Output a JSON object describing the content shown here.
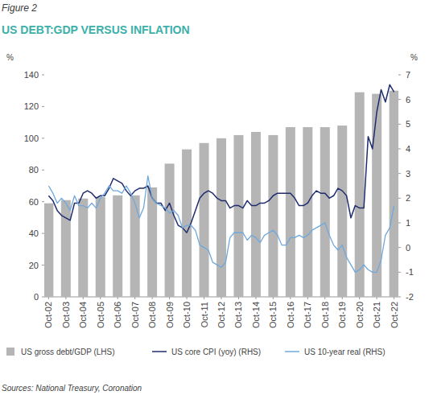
{
  "chart_data": {
    "type": "bar_line",
    "figure_label": "Figure 2",
    "title": "US DEBT:GDP VERSUS INFLATION",
    "y_label": "%",
    "y2_label": "%",
    "source": "Sources: National Treasury, Coronation",
    "xlim": [
      2002.5,
      2023.0
    ],
    "xticks": [
      {
        "value": 2002.75,
        "label": "Oct-02"
      },
      {
        "value": 2003.75,
        "label": "Oct-03"
      },
      {
        "value": 2004.75,
        "label": "Oct-04"
      },
      {
        "value": 2005.75,
        "label": "Oct-05"
      },
      {
        "value": 2006.75,
        "label": "Oct-06"
      },
      {
        "value": 2007.75,
        "label": "Oct-07"
      },
      {
        "value": 2008.75,
        "label": "Oct-08"
      },
      {
        "value": 2009.75,
        "label": "Oct-09"
      },
      {
        "value": 2010.75,
        "label": "Oct-10"
      },
      {
        "value": 2011.75,
        "label": "Oct-11"
      },
      {
        "value": 2012.75,
        "label": "Oct-12"
      },
      {
        "value": 2013.75,
        "label": "Oct-13"
      },
      {
        "value": 2014.75,
        "label": "Oct-14"
      },
      {
        "value": 2015.75,
        "label": "Oct-15"
      },
      {
        "value": 2016.75,
        "label": "Oct-16"
      },
      {
        "value": 2017.75,
        "label": "Oct-17"
      },
      {
        "value": 2018.75,
        "label": "Oct-18"
      },
      {
        "value": 2019.75,
        "label": "Oct-19"
      },
      {
        "value": 2020.75,
        "label": "Oct-20"
      },
      {
        "value": 2021.75,
        "label": "Oct-21"
      },
      {
        "value": 2022.75,
        "label": "Oct-22"
      }
    ],
    "ylim": [
      0,
      140
    ],
    "yticks": [
      0,
      20,
      40,
      60,
      80,
      100,
      120,
      140
    ],
    "y2lim": [
      -2,
      7
    ],
    "y2ticks": [
      -2,
      -1,
      0,
      1,
      2,
      3,
      4,
      5,
      6,
      7
    ],
    "grid": false,
    "legend": "bottom",
    "series": [
      {
        "name": "US gross debt/GDP (LHS)",
        "type": "bar",
        "color": "#b5b5b5",
        "x": [
          2002.75,
          2003.75,
          2004.75,
          2005.75,
          2006.75,
          2007.75,
          2008.75,
          2009.75,
          2010.75,
          2011.75,
          2012.75,
          2013.75,
          2014.75,
          2015.75,
          2016.75,
          2017.75,
          2018.75,
          2019.75,
          2020.75,
          2021.75,
          2022.75
        ],
        "values": [
          59,
          61,
          62,
          63,
          64,
          64,
          69,
          84,
          93,
          97,
          100,
          102,
          104,
          102,
          107,
          107,
          107,
          108,
          129,
          128,
          130
        ]
      },
      {
        "name": "US core CPI (yoy) (RHS)",
        "type": "line",
        "axis": "y2",
        "color": "#1f2d6e",
        "x": [
          2002.75,
          2003.0,
          2003.25,
          2003.5,
          2003.75,
          2004.0,
          2004.25,
          2004.5,
          2004.75,
          2005.0,
          2005.25,
          2005.5,
          2005.75,
          2006.0,
          2006.25,
          2006.5,
          2006.75,
          2007.0,
          2007.25,
          2007.5,
          2007.75,
          2008.0,
          2008.25,
          2008.5,
          2008.75,
          2009.0,
          2009.25,
          2009.5,
          2009.75,
          2010.0,
          2010.25,
          2010.5,
          2010.75,
          2011.0,
          2011.25,
          2011.5,
          2011.75,
          2012.0,
          2012.25,
          2012.5,
          2012.75,
          2013.0,
          2013.25,
          2013.5,
          2013.75,
          2014.0,
          2014.25,
          2014.5,
          2014.75,
          2015.0,
          2015.25,
          2015.5,
          2015.75,
          2016.0,
          2016.25,
          2016.5,
          2016.75,
          2017.0,
          2017.25,
          2017.5,
          2017.75,
          2018.0,
          2018.25,
          2018.5,
          2018.75,
          2019.0,
          2019.25,
          2019.5,
          2019.75,
          2020.0,
          2020.25,
          2020.5,
          2020.75,
          2021.0,
          2021.25,
          2021.5,
          2021.75,
          2022.0,
          2022.25,
          2022.5,
          2022.75
        ],
        "values": [
          2.1,
          1.9,
          1.5,
          1.3,
          1.2,
          1.1,
          1.8,
          1.8,
          2.2,
          2.3,
          2.2,
          2.0,
          2.1,
          2.1,
          2.4,
          2.8,
          2.7,
          2.6,
          2.3,
          2.1,
          2.3,
          2.4,
          2.4,
          2.5,
          2.0,
          1.8,
          1.8,
          1.5,
          1.8,
          1.3,
          0.9,
          0.8,
          0.6,
          1.0,
          1.5,
          2.0,
          2.2,
          2.3,
          2.2,
          2.0,
          1.9,
          1.9,
          1.6,
          1.7,
          1.7,
          1.6,
          1.9,
          1.7,
          1.7,
          1.8,
          1.8,
          1.9,
          2.1,
          2.2,
          2.2,
          2.2,
          2.2,
          2.0,
          1.7,
          1.7,
          1.8,
          2.1,
          2.3,
          2.2,
          2.2,
          2.0,
          2.1,
          2.4,
          2.3,
          2.1,
          1.2,
          1.7,
          1.6,
          1.6,
          4.5,
          4.0,
          5.5,
          6.4,
          5.9,
          6.6,
          6.3
        ]
      },
      {
        "name": "US 10-year real (RHS)",
        "type": "line",
        "axis": "y2",
        "color": "#6fa8dc",
        "x": [
          2002.75,
          2003.0,
          2003.25,
          2003.5,
          2003.75,
          2004.0,
          2004.25,
          2004.5,
          2004.75,
          2005.0,
          2005.25,
          2005.5,
          2005.75,
          2006.0,
          2006.25,
          2006.5,
          2006.75,
          2007.0,
          2007.25,
          2007.5,
          2007.75,
          2008.0,
          2008.25,
          2008.5,
          2008.75,
          2009.0,
          2009.25,
          2009.5,
          2009.75,
          2010.0,
          2010.25,
          2010.5,
          2010.75,
          2011.0,
          2011.25,
          2011.5,
          2011.75,
          2012.0,
          2012.25,
          2012.5,
          2012.75,
          2013.0,
          2013.25,
          2013.5,
          2013.75,
          2014.0,
          2014.25,
          2014.5,
          2014.75,
          2015.0,
          2015.25,
          2015.5,
          2015.75,
          2016.0,
          2016.25,
          2016.5,
          2016.75,
          2017.0,
          2017.25,
          2017.5,
          2017.75,
          2018.0,
          2018.25,
          2018.5,
          2018.75,
          2019.0,
          2019.25,
          2019.5,
          2019.75,
          2020.0,
          2020.25,
          2020.5,
          2020.75,
          2021.0,
          2021.25,
          2021.5,
          2021.75,
          2022.0,
          2022.25,
          2022.5,
          2022.75
        ],
        "values": [
          2.5,
          2.2,
          1.8,
          2.0,
          1.8,
          1.5,
          2.1,
          1.7,
          1.7,
          1.6,
          1.8,
          1.6,
          2.0,
          2.2,
          2.5,
          2.3,
          2.3,
          2.2,
          2.5,
          2.2,
          1.8,
          1.2,
          1.6,
          2.9,
          2.0,
          1.8,
          1.7,
          1.6,
          1.4,
          1.5,
          1.3,
          0.8,
          0.9,
          0.9,
          0.7,
          0.1,
          0.0,
          -0.1,
          -0.6,
          -0.7,
          -0.8,
          -0.6,
          0.4,
          0.6,
          0.6,
          0.6,
          0.3,
          0.5,
          0.4,
          0.2,
          0.5,
          0.6,
          0.7,
          0.5,
          0.1,
          0.1,
          0.4,
          0.4,
          0.5,
          0.4,
          0.5,
          0.7,
          0.8,
          0.9,
          1.0,
          0.5,
          0.1,
          -0.1,
          0.1,
          -0.4,
          -0.7,
          -1.0,
          -0.9,
          -0.7,
          -0.9,
          -1.0,
          -1.0,
          -0.5,
          0.5,
          0.8,
          1.7
        ]
      }
    ]
  }
}
